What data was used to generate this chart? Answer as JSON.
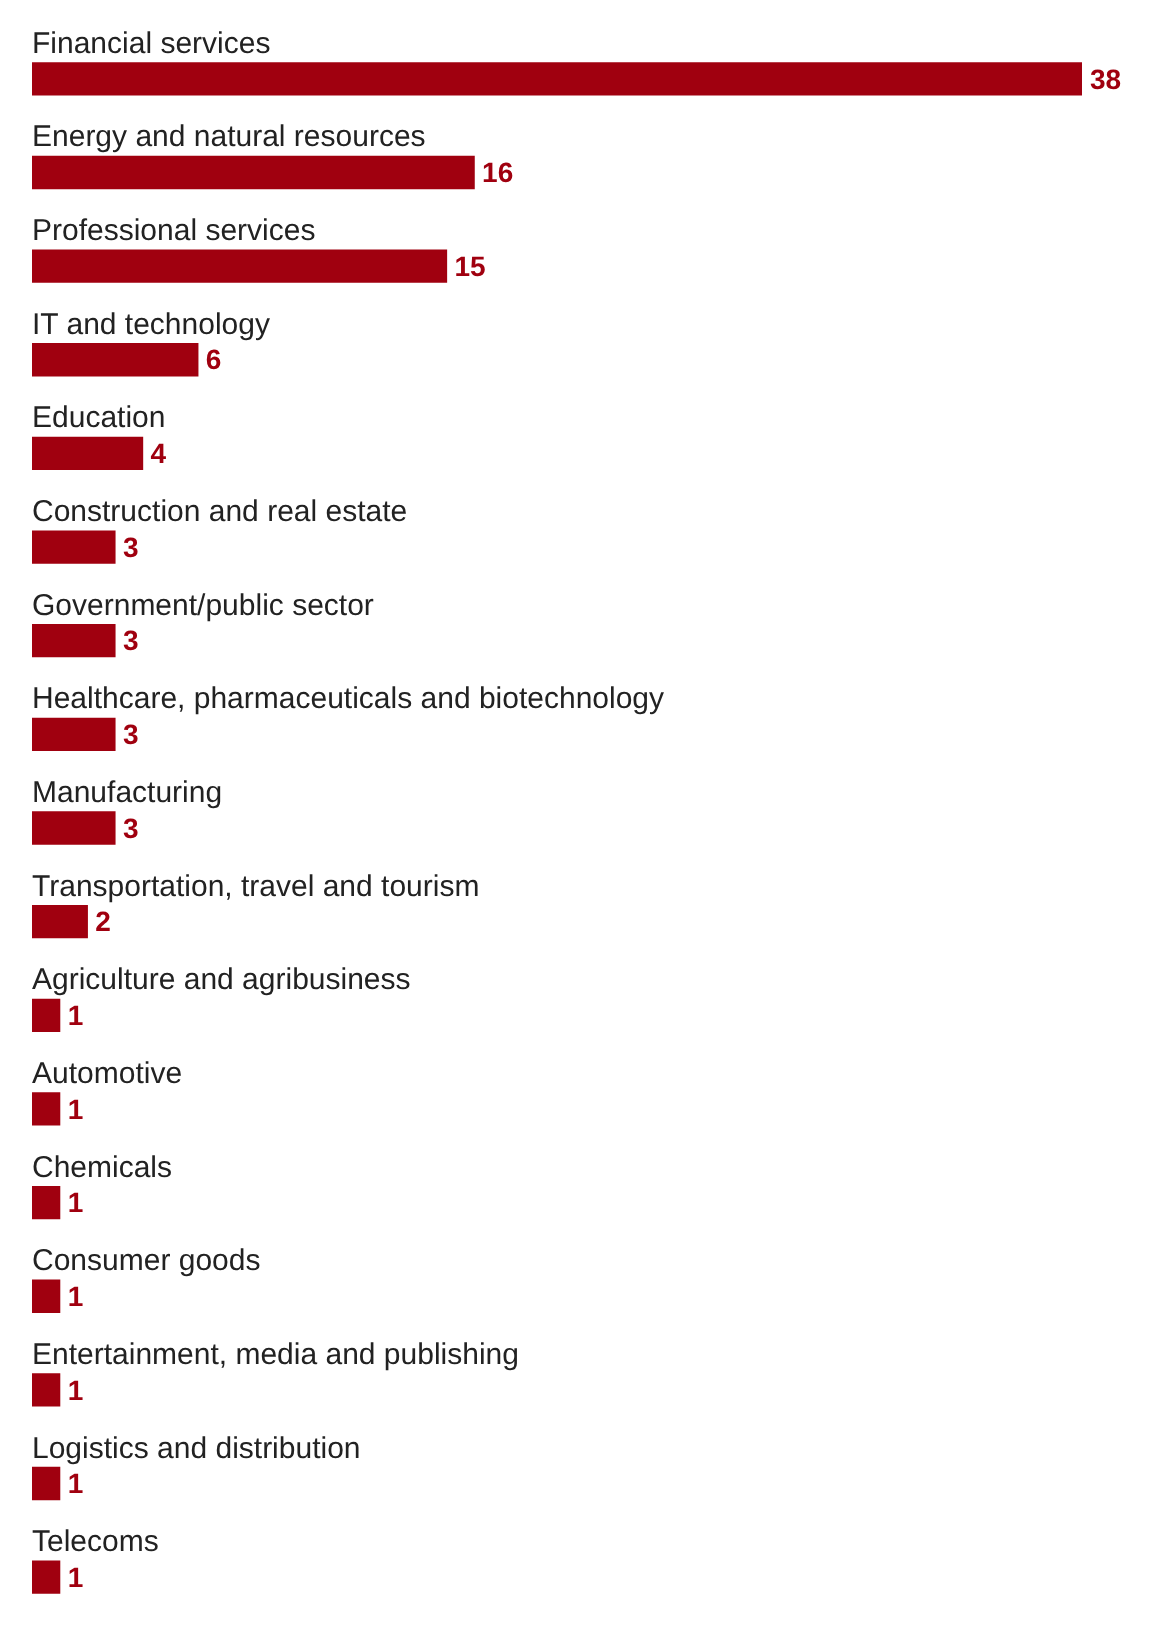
{
  "chart_data": {
    "type": "bar",
    "orientation": "horizontal",
    "data_labels": true,
    "color": "#a0000f",
    "categories": [
      "Financial services",
      "Energy and natural resources",
      "Professional services",
      "IT and technology",
      "Education",
      "Construction and real estate",
      "Government/public sector",
      "Healthcare, pharmaceuticals and biotechnology",
      "Manufacturing",
      "Transportation, travel and tourism",
      "Agriculture and agribusiness",
      "Automotive",
      "Chemicals",
      "Consumer goods",
      "Entertainment, media and publishing",
      "Logistics and distribution",
      "Telecoms"
    ],
    "values": [
      38,
      16,
      15,
      6,
      4,
      3,
      3,
      3,
      3,
      2,
      1,
      1,
      1,
      1,
      1,
      1,
      1
    ]
  }
}
